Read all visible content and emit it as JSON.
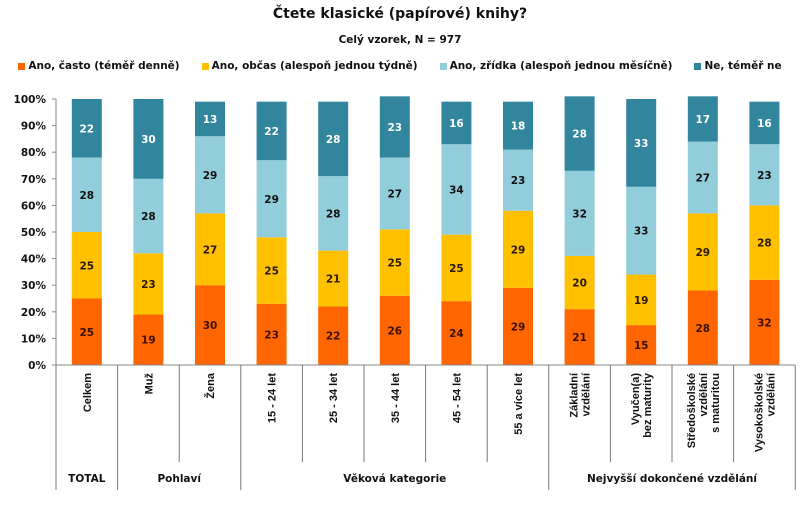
{
  "chart_data": {
    "type": "bar",
    "stacked": true,
    "title": "Čtete klasické (papírové) knihy?",
    "subtitle": "Celý vzorek, N = 977",
    "xlabel": "",
    "ylabel": "",
    "ylim": [
      0,
      100
    ],
    "y_ticks": [
      "0%",
      "10%",
      "20%",
      "30%",
      "40%",
      "50%",
      "60%",
      "70%",
      "80%",
      "90%",
      "100%"
    ],
    "legend_position": "top",
    "grid": false,
    "categories": [
      [
        "Celkem"
      ],
      [
        "Muž"
      ],
      [
        "Žena"
      ],
      [
        "15 - 24 let"
      ],
      [
        "25 - 34 let"
      ],
      [
        "35 - 44 let"
      ],
      [
        "45 - 54 let"
      ],
      [
        "55 a více let"
      ],
      [
        "Základní",
        "vzdělání"
      ],
      [
        "Vyučen(a)",
        "bez maturity"
      ],
      [
        "Středoškolské",
        "vzdělání",
        "s maturitou"
      ],
      [
        "Vysokoškolské",
        "vzdělání"
      ]
    ],
    "groups": [
      {
        "label": "TOTAL",
        "count": 1
      },
      {
        "label": "Pohlaví",
        "count": 2
      },
      {
        "label": "Věková kategorie",
        "count": 5
      },
      {
        "label": "Nejvyšší dokončené vzdělání",
        "count": 4
      }
    ],
    "series": [
      {
        "name": "Ano, často (téměř denně)",
        "color": "#FF6600",
        "label_color": "#3a1000",
        "values": [
          25,
          19,
          30,
          23,
          22,
          26,
          24,
          29,
          21,
          15,
          28,
          32
        ]
      },
      {
        "name": "Ano, občas (alespoň jednou týdně)",
        "color": "#FFC000",
        "label_color": "#2a1a00",
        "values": [
          25,
          23,
          27,
          25,
          21,
          25,
          25,
          29,
          20,
          19,
          29,
          28
        ]
      },
      {
        "name": "Ano, zřídka (alespoň jednou měsíčně)",
        "color": "#92CDDC",
        "label_color": "#111111",
        "values": [
          28,
          28,
          29,
          29,
          28,
          27,
          34,
          23,
          32,
          33,
          27,
          23
        ]
      },
      {
        "name": "Ne, téměř ne",
        "color": "#31859C",
        "label_color": "#ffffff",
        "values": [
          22,
          30,
          13,
          22,
          28,
          23,
          16,
          18,
          28,
          33,
          17,
          16
        ]
      }
    ]
  }
}
